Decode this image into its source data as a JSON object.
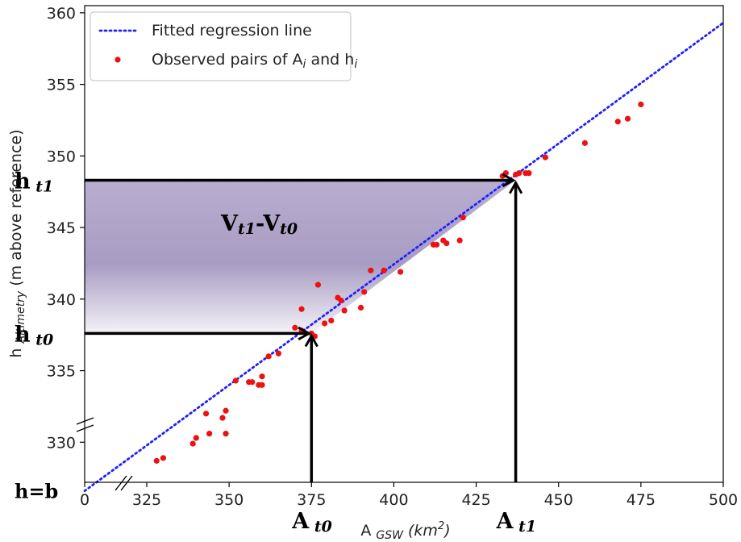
{
  "chart_data": {
    "type": "scatter",
    "xlim": [
      0,
      500
    ],
    "ylim": [
      327.2,
      360.5
    ],
    "x_tick_labels": [
      "0",
      "325",
      "350",
      "375",
      "400",
      "425",
      "450",
      "475",
      "500"
    ],
    "x_tick_values": [
      0,
      325,
      350,
      375,
      400,
      425,
      450,
      475,
      500
    ],
    "y_tick_labels": [
      "330",
      "335",
      "340",
      "345",
      "350",
      "355",
      "360"
    ],
    "y_tick_values": [
      330,
      335,
      340,
      345,
      350,
      355,
      360
    ],
    "xlabel": {
      "base": "A",
      "sub": "GSW",
      "unit": "(km",
      "sup": "2",
      "close": ")"
    },
    "ylabel": {
      "base": "h",
      "sub": "Altimetry",
      "rest": "(m above reference)"
    },
    "grid": false,
    "legend_position": "top-left",
    "legend": [
      {
        "text": "Fitted regression line",
        "marker": "dotted-line",
        "color": "#1f1fff"
      },
      {
        "text": "Observed pairs of A",
        "sub": "i",
        "mid": " and h",
        "sub2": "i",
        "marker": "dot",
        "color": "#ee1111"
      }
    ],
    "regression_line": {
      "x": [
        0,
        500
      ],
      "y": [
        326.6,
        359.3
      ]
    },
    "series": [
      {
        "points": [
          [
            328,
            328.7
          ],
          [
            330,
            328.9
          ],
          [
            339,
            329.9
          ],
          [
            340,
            330.3
          ],
          [
            343,
            332.0
          ],
          [
            344,
            330.6
          ],
          [
            348,
            331.7
          ],
          [
            349,
            332.2
          ],
          [
            349,
            330.6
          ],
          [
            352,
            334.3
          ],
          [
            356,
            334.2
          ],
          [
            357,
            334.2
          ],
          [
            359,
            334.0
          ],
          [
            360,
            334.6
          ],
          [
            360,
            334.0
          ],
          [
            362,
            336.0
          ],
          [
            365,
            336.2
          ],
          [
            370,
            338.0
          ],
          [
            372,
            337.8
          ],
          [
            372,
            339.3
          ],
          [
            375,
            337.6
          ],
          [
            376,
            337.4
          ],
          [
            377,
            341.0
          ],
          [
            379,
            338.3
          ],
          [
            381,
            338.5
          ],
          [
            383,
            340.1
          ],
          [
            384,
            339.9
          ],
          [
            385,
            339.2
          ],
          [
            390,
            339.4
          ],
          [
            391,
            340.5
          ],
          [
            393,
            342.0
          ],
          [
            397,
            342.0
          ],
          [
            402,
            341.9
          ],
          [
            412,
            343.8
          ],
          [
            413,
            343.8
          ],
          [
            415,
            344.1
          ],
          [
            416,
            343.9
          ],
          [
            420,
            344.1
          ],
          [
            421,
            345.7
          ],
          [
            433,
            348.6
          ],
          [
            434,
            348.8
          ],
          [
            437,
            348.7
          ],
          [
            438,
            348.8
          ],
          [
            440,
            348.8
          ],
          [
            441,
            348.8
          ],
          [
            446,
            349.9
          ],
          [
            458,
            350.9
          ],
          [
            468,
            352.4
          ],
          [
            471,
            352.6
          ],
          [
            475,
            353.6
          ]
        ]
      }
    ],
    "annotations": {
      "h_t1": {
        "label": "h",
        "sub": "t1",
        "value": 348.3
      },
      "h_t0": {
        "label": "h",
        "sub": "t0",
        "value": 337.6
      },
      "A_t1": {
        "label": "A",
        "sub": "t1",
        "value": 437
      },
      "A_t0": {
        "label": "A",
        "sub": "t0",
        "value": 375
      },
      "h_b": {
        "label": "h=b",
        "value": 326.6
      },
      "volume": {
        "label": "V",
        "sub": "t1",
        "mid": "-V",
        "sub2": "t0"
      }
    }
  }
}
